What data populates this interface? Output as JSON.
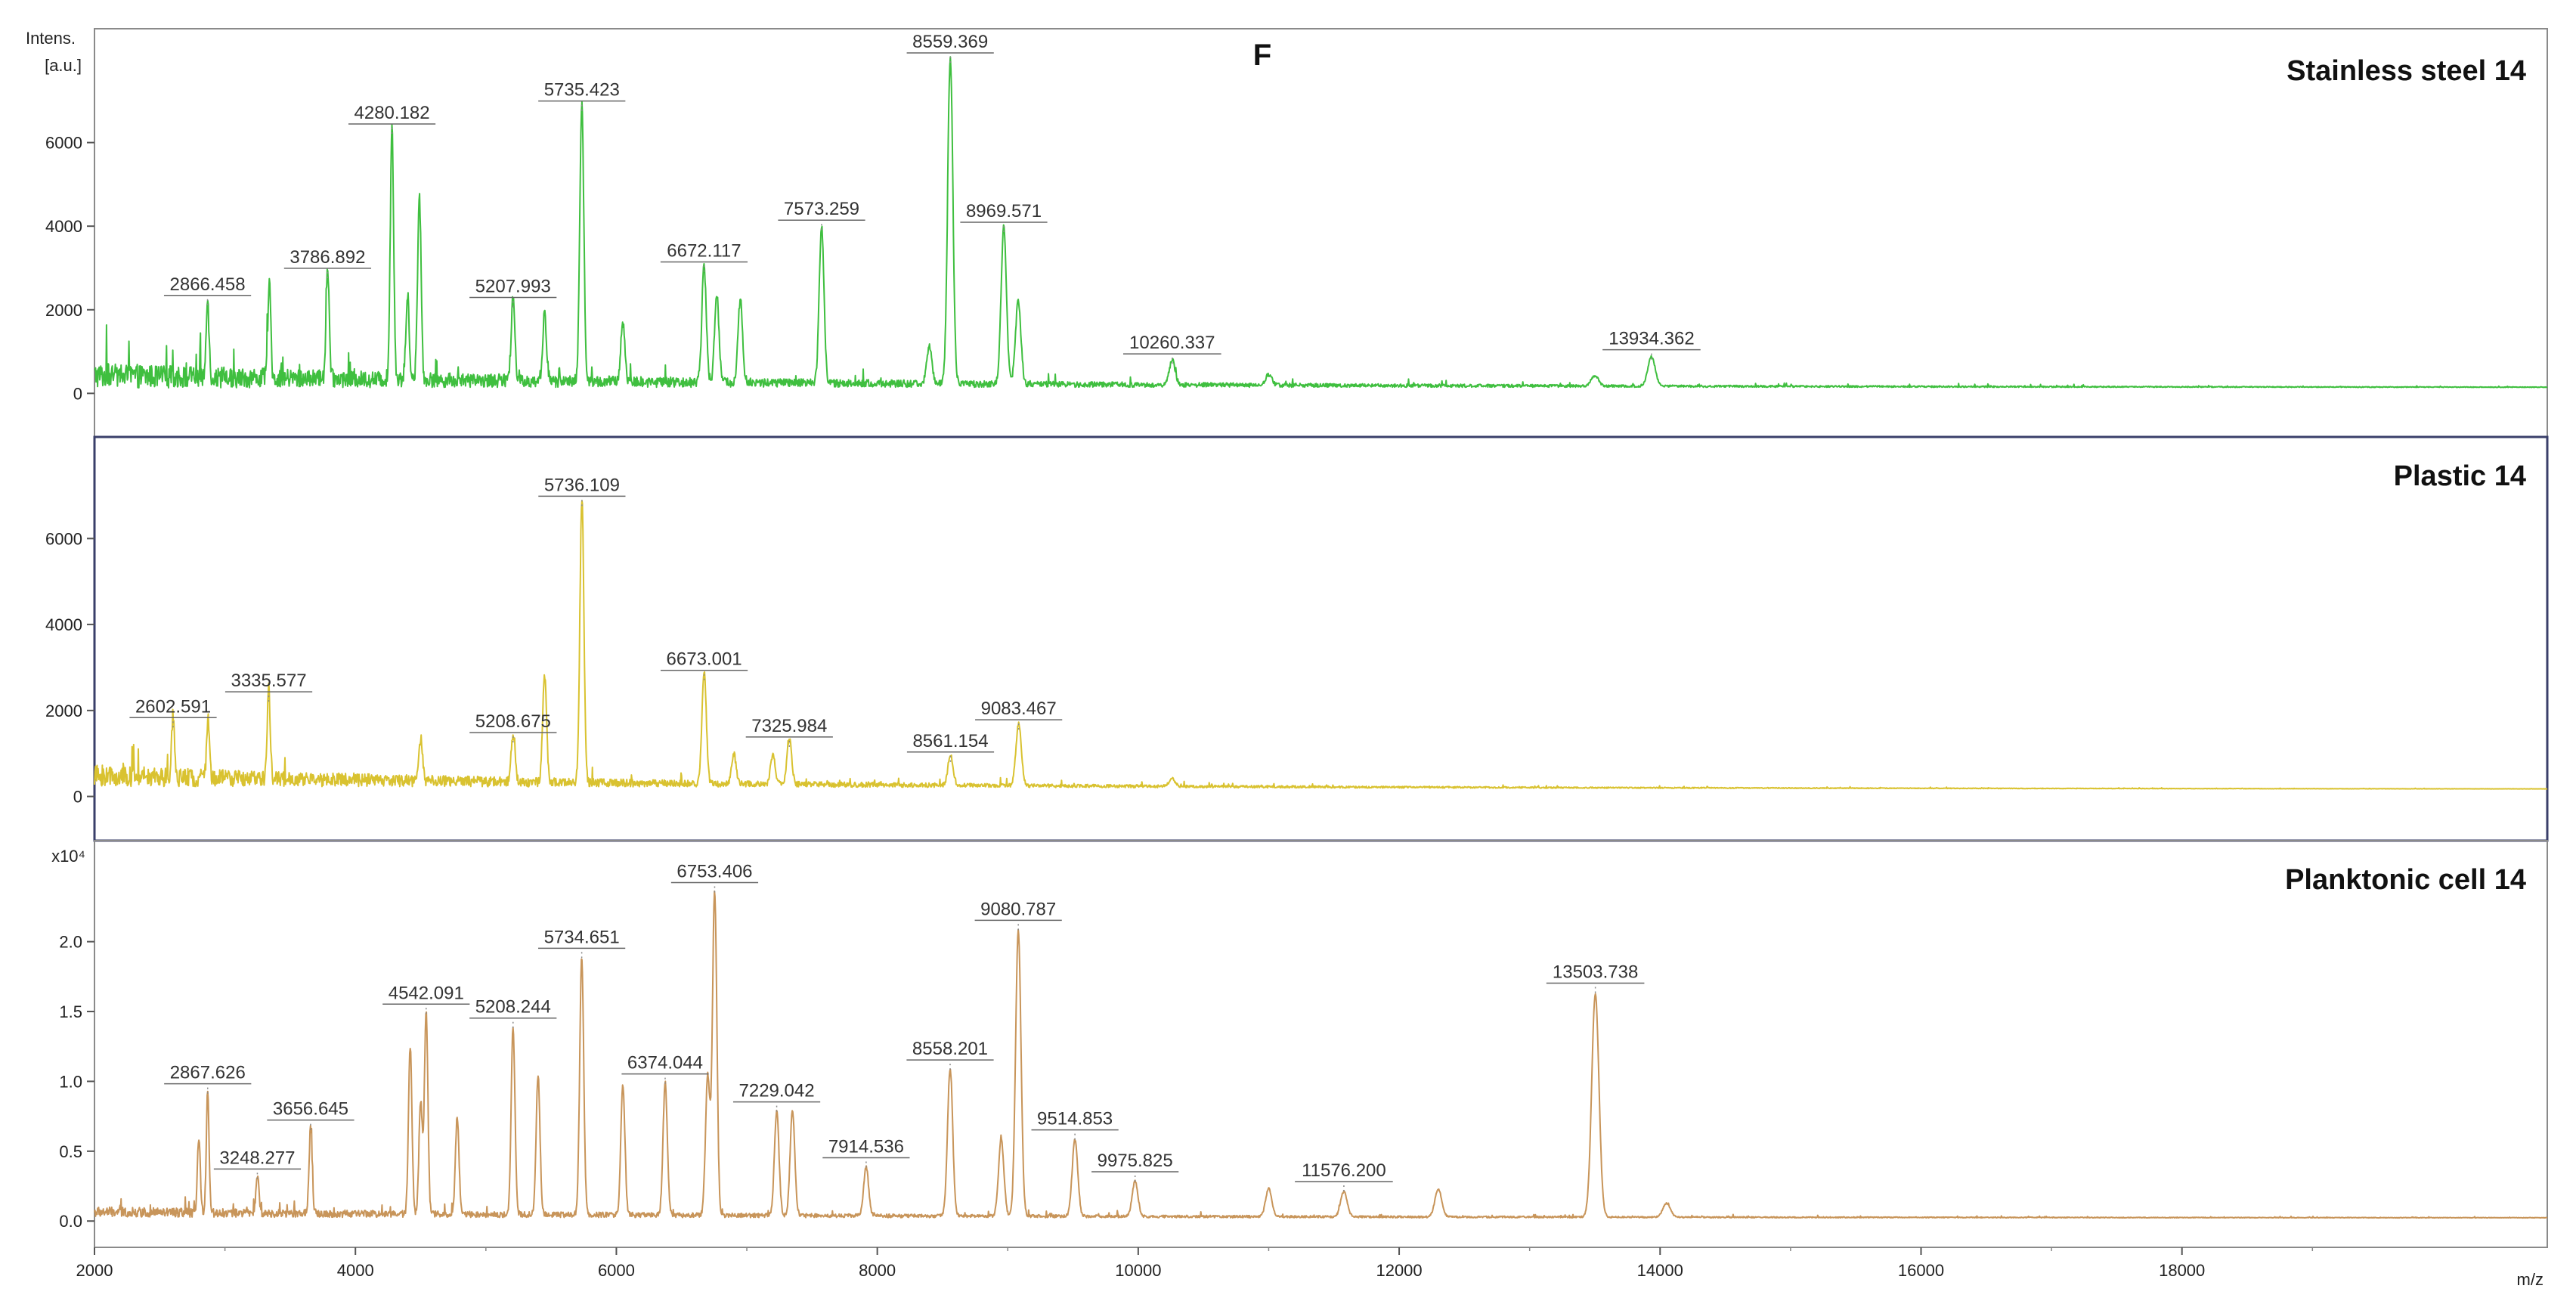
{
  "chart_data": {
    "type": "line",
    "figure_label": "F",
    "y_axis_label_line1": "Intens.",
    "y_axis_label_line2": "[a.u.]",
    "x_axis_label": "m/z",
    "x_range": [
      2000,
      20800
    ],
    "x_ticks": [
      2000,
      4000,
      6000,
      8000,
      10000,
      12000,
      14000,
      16000,
      18000
    ],
    "grid": false,
    "panels": [
      {
        "title": "Stainless steel 14",
        "color": "#3fbf3f",
        "y_range": [
          -500,
          8000
        ],
        "y_ticks": [
          0,
          2000,
          4000,
          6000
        ],
        "y_tick_labels": [
          "0",
          "2000",
          "4000",
          "6000"
        ],
        "y_multiplier": "",
        "baseline": 250,
        "noise": 500,
        "decay": 5000,
        "peaks": [
          {
            "mz": 2866.458,
            "intensity": 2000,
            "label": "2866.458"
          },
          {
            "mz": 3786.892,
            "intensity": 2650,
            "label": "3786.892"
          },
          {
            "mz": 4280.182,
            "intensity": 6100,
            "label": "4280.182"
          },
          {
            "mz": 5207.993,
            "intensity": 1950,
            "label": "5207.993"
          },
          {
            "mz": 5735.423,
            "intensity": 6650,
            "label": "5735.423"
          },
          {
            "mz": 6672.117,
            "intensity": 2800,
            "label": "6672.117"
          },
          {
            "mz": 7573.259,
            "intensity": 3800,
            "label": "7573.259"
          },
          {
            "mz": 8559.369,
            "intensity": 7800,
            "label": "8559.369"
          },
          {
            "mz": 8969.571,
            "intensity": 3750,
            "label": "8969.571"
          },
          {
            "mz": 10260.337,
            "intensity": 600,
            "label": "10260.337"
          },
          {
            "mz": 13934.362,
            "intensity": 700,
            "label": "13934.362"
          },
          {
            "mz": 3340,
            "intensity": 2200,
            "label": ""
          },
          {
            "mz": 4490,
            "intensity": 4500,
            "label": ""
          },
          {
            "mz": 4400,
            "intensity": 2000,
            "label": ""
          },
          {
            "mz": 5450,
            "intensity": 1600,
            "label": ""
          },
          {
            "mz": 6050,
            "intensity": 1400,
            "label": ""
          },
          {
            "mz": 6770,
            "intensity": 2100,
            "label": ""
          },
          {
            "mz": 6950,
            "intensity": 2000,
            "label": ""
          },
          {
            "mz": 9080,
            "intensity": 2000,
            "label": ""
          },
          {
            "mz": 8400,
            "intensity": 900,
            "label": ""
          },
          {
            "mz": 11000,
            "intensity": 250,
            "label": ""
          },
          {
            "mz": 13500,
            "intensity": 250,
            "label": ""
          }
        ]
      },
      {
        "title": "Plastic 14",
        "color": "#d9c230",
        "y_range": [
          -500,
          7800
        ],
        "y_ticks": [
          0,
          2000,
          4000,
          6000
        ],
        "y_tick_labels": [
          "0",
          "2000",
          "4000",
          "6000"
        ],
        "y_multiplier": "",
        "baseline": 300,
        "noise": 420,
        "decay": 4000,
        "peaks": [
          {
            "mz": 2602.591,
            "intensity": 1500,
            "label": "2602.591"
          },
          {
            "mz": 3335.577,
            "intensity": 2100,
            "label": "3335.577"
          },
          {
            "mz": 5208.675,
            "intensity": 1150,
            "label": "5208.675"
          },
          {
            "mz": 5736.109,
            "intensity": 6650,
            "label": "5736.109"
          },
          {
            "mz": 6673.001,
            "intensity": 2600,
            "label": "6673.001"
          },
          {
            "mz": 7325.984,
            "intensity": 1050,
            "label": "7325.984"
          },
          {
            "mz": 8561.154,
            "intensity": 700,
            "label": "8561.154"
          },
          {
            "mz": 9083.467,
            "intensity": 1450,
            "label": "9083.467"
          },
          {
            "mz": 5450,
            "intensity": 2500,
            "label": ""
          },
          {
            "mz": 2870,
            "intensity": 1400,
            "label": ""
          },
          {
            "mz": 4500,
            "intensity": 1000,
            "label": ""
          },
          {
            "mz": 6900,
            "intensity": 700,
            "label": ""
          },
          {
            "mz": 7200,
            "intensity": 700,
            "label": ""
          },
          {
            "mz": 10260,
            "intensity": 180,
            "label": ""
          }
        ]
      },
      {
        "title": "Planktonic cell 14",
        "color": "#c8955a",
        "y_range": [
          -0.08,
          2.55
        ],
        "y_ticks": [
          0,
          0.5,
          1.0,
          1.5,
          2.0
        ],
        "y_tick_labels": [
          "0.0",
          "0.5",
          "1.0",
          "1.5",
          "2.0"
        ],
        "y_multiplier": "x10⁴",
        "baseline": 0.04,
        "noise": 0.06,
        "decay": 6000,
        "peaks": [
          {
            "mz": 2867.626,
            "intensity": 0.88,
            "label": "2867.626"
          },
          {
            "mz": 3248.277,
            "intensity": 0.27,
            "label": "3248.277"
          },
          {
            "mz": 3656.645,
            "intensity": 0.62,
            "label": "3656.645"
          },
          {
            "mz": 4542.091,
            "intensity": 1.45,
            "label": "4542.091"
          },
          {
            "mz": 5208.244,
            "intensity": 1.35,
            "label": "5208.244"
          },
          {
            "mz": 5734.651,
            "intensity": 1.85,
            "label": "5734.651"
          },
          {
            "mz": 6374.044,
            "intensity": 0.95,
            "label": "6374.044"
          },
          {
            "mz": 6753.406,
            "intensity": 2.32,
            "label": "6753.406"
          },
          {
            "mz": 7229.042,
            "intensity": 0.75,
            "label": "7229.042"
          },
          {
            "mz": 7914.536,
            "intensity": 0.35,
            "label": "7914.536"
          },
          {
            "mz": 8558.201,
            "intensity": 1.05,
            "label": "8558.201"
          },
          {
            "mz": 9080.787,
            "intensity": 2.05,
            "label": "9080.787"
          },
          {
            "mz": 9514.853,
            "intensity": 0.55,
            "label": "9514.853"
          },
          {
            "mz": 9975.825,
            "intensity": 0.25,
            "label": "9975.825"
          },
          {
            "mz": 11576.2,
            "intensity": 0.18,
            "label": "11576.200"
          },
          {
            "mz": 13503.738,
            "intensity": 1.6,
            "label": "13503.738"
          },
          {
            "mz": 4420,
            "intensity": 1.2,
            "label": ""
          },
          {
            "mz": 4500,
            "intensity": 0.8,
            "label": ""
          },
          {
            "mz": 4780,
            "intensity": 0.7,
            "label": ""
          },
          {
            "mz": 5400,
            "intensity": 1.0,
            "label": ""
          },
          {
            "mz": 6050,
            "intensity": 0.92,
            "label": ""
          },
          {
            "mz": 6700,
            "intensity": 1.0,
            "label": ""
          },
          {
            "mz": 7350,
            "intensity": 0.75,
            "label": ""
          },
          {
            "mz": 8950,
            "intensity": 0.55,
            "label": ""
          },
          {
            "mz": 11000,
            "intensity": 0.2,
            "label": ""
          },
          {
            "mz": 12300,
            "intensity": 0.2,
            "label": ""
          },
          {
            "mz": 14050,
            "intensity": 0.1,
            "label": ""
          },
          {
            "mz": 2800,
            "intensity": 0.55,
            "label": ""
          }
        ]
      }
    ]
  }
}
